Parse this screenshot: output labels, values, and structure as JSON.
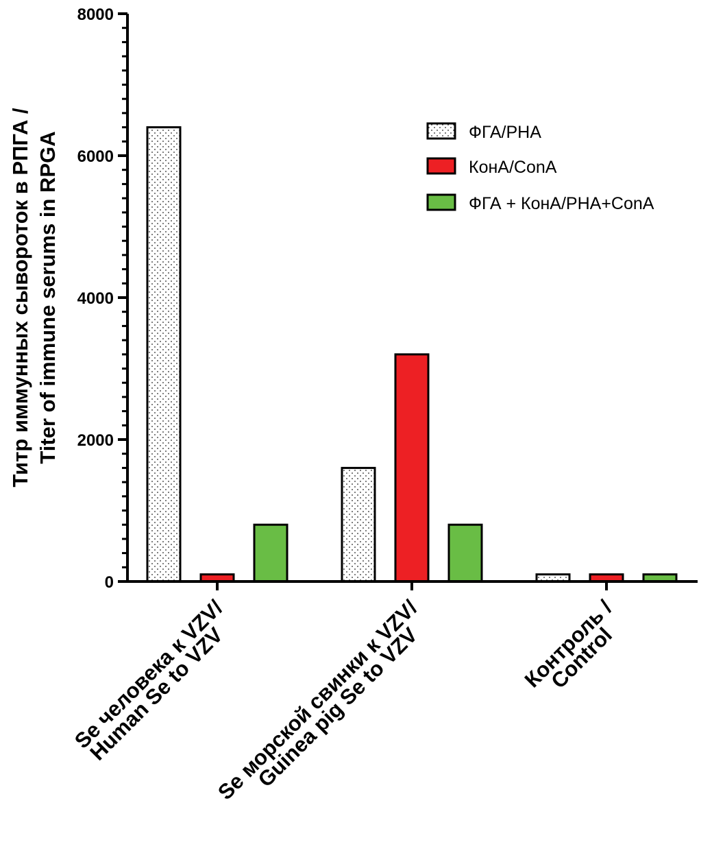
{
  "chart_data": {
    "type": "bar",
    "title": "",
    "ylabel_lines": [
      "Титр иммунных сывороток в РПГА /",
      "Titer of immune serums in RPGA"
    ],
    "xlabel": "",
    "ylim": [
      0,
      8000
    ],
    "yticks": [
      0,
      2000,
      4000,
      6000,
      8000
    ],
    "categories": [
      [
        "Se человека к VZV/",
        "Human Se to VZV"
      ],
      [
        "Se морской свинки к VZV/",
        "Guinea pig Se to VZV"
      ],
      [
        "Контроль /",
        "Control"
      ]
    ],
    "series": [
      {
        "name": "ФГА/PHA",
        "values": [
          6400,
          1600,
          100
        ],
        "color": "#ffffff",
        "pattern": "dots"
      },
      {
        "name": "КонА/ConA",
        "values": [
          100,
          3200,
          100
        ],
        "color": "#ed2024",
        "pattern": "solid"
      },
      {
        "name": "ФГА + КонА/PHA+ConA",
        "values": [
          800,
          800,
          100
        ],
        "color": "#69bd45",
        "pattern": "solid"
      }
    ],
    "legend_position": "top-right",
    "grid": false
  }
}
